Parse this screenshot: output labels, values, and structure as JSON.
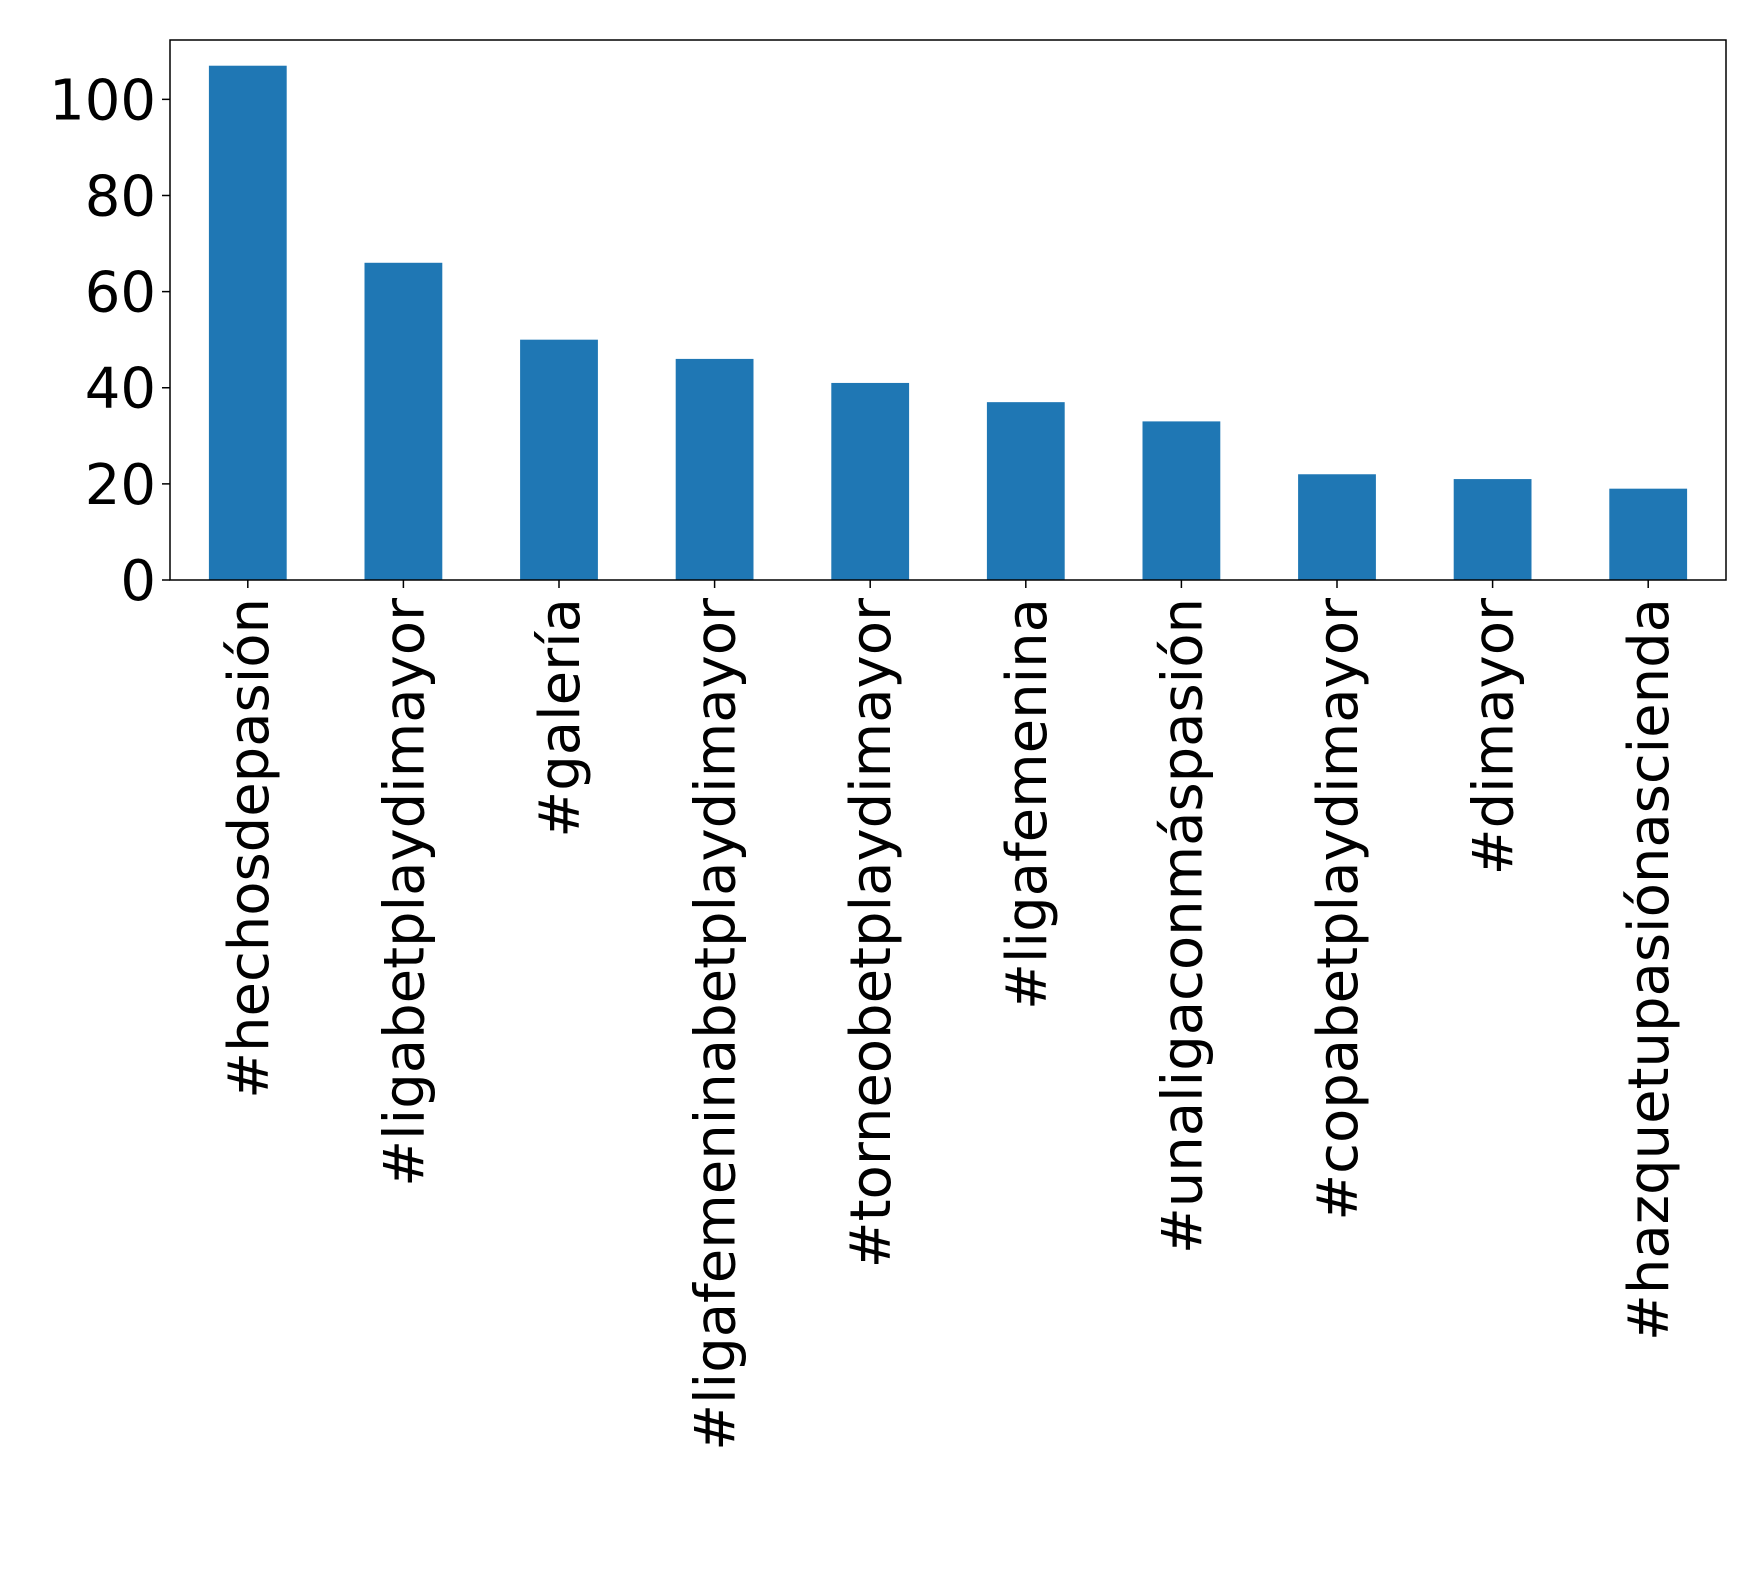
{
  "chart_data": {
    "type": "bar",
    "title": "",
    "xlabel": "",
    "ylabel": "",
    "categories": [
      "#hechosdepasión",
      "#ligabetplaydimayor",
      "#galería",
      "#ligafemeninabetplaydimayor",
      "#torneobetplaydimayor",
      "#ligafemenina",
      "#unaligaconmáspasión",
      "#copabetplaydimayor",
      "#dimayor",
      "#hazquetupasiónascienda"
    ],
    "values": [
      107,
      66,
      50,
      46,
      41,
      37,
      33,
      22,
      21,
      19
    ],
    "ylim": [
      0,
      112.35
    ],
    "yticks": [
      0,
      20,
      40,
      60,
      80,
      100
    ],
    "ytick_labels": [
      "0",
      "20",
      "40",
      "60",
      "80",
      "100"
    ],
    "bar_color": "#1f77b4",
    "grid": false,
    "legend": "none"
  }
}
